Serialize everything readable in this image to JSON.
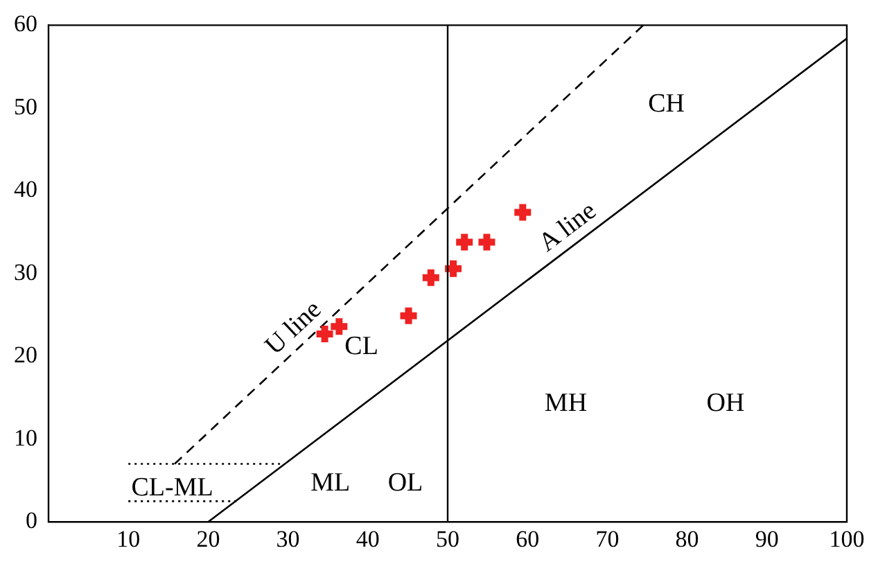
{
  "chart_data": {
    "type": "scatter",
    "xlim": [
      0,
      100
    ],
    "ylim": [
      0,
      60
    ],
    "xticks": [
      10,
      20,
      30,
      40,
      50,
      60,
      70,
      80,
      90,
      100
    ],
    "yticks": [
      0,
      10,
      20,
      30,
      40,
      50,
      60
    ],
    "grid": false,
    "legend": false,
    "marker": "cross",
    "series": [
      {
        "color": "#ee2222",
        "x": [
          34.6,
          36.4,
          45.1,
          47.9,
          50.7,
          52.1,
          54.9,
          59.4
        ],
        "values": [
          22.7,
          23.6,
          24.9,
          29.5,
          30.6,
          33.8,
          33.8,
          37.4
        ]
      },
      {
        "type": "line",
        "name": "A line",
        "color": "#000000",
        "line_style": "solid",
        "marker": "none",
        "x": [
          20,
          100
        ],
        "values": [
          0,
          58.4
        ]
      },
      {
        "type": "line",
        "name": "U line",
        "color": "#000000",
        "line_style": "dashed",
        "marker": "none",
        "x": [
          15.8,
          74.5
        ],
        "values": [
          7,
          60
        ]
      },
      {
        "type": "line",
        "color": "#000000",
        "line_style": "dotted",
        "marker": "none",
        "x": [
          10,
          29
        ],
        "values": [
          7,
          7
        ]
      },
      {
        "type": "line",
        "color": "#000000",
        "line_style": "dotted",
        "marker": "none",
        "x": [
          10,
          24
        ],
        "values": [
          2.5,
          2.5
        ]
      }
    ],
    "ref_lines": [
      {
        "axis": "x",
        "value": 50,
        "color": "#000000",
        "line_style": "solid"
      }
    ],
    "annotations": [
      "CH",
      "CL",
      "MH",
      "OH",
      "ML",
      "OL",
      "CL-ML"
    ]
  }
}
